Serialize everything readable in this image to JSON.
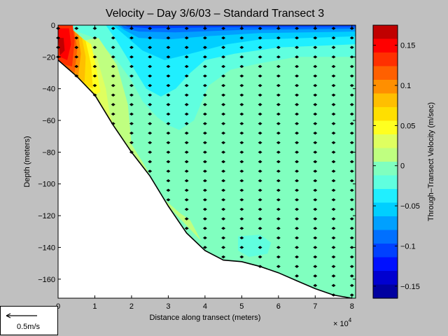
{
  "chart_data": {
    "type": "contour",
    "title": "Velocity – Day 3/6/03 – Standard Transect 3",
    "xlabel": "Distance along transect (meters)",
    "x_multiplier": "× 10",
    "x_multiplier_exp": "4",
    "ylabel": "Depth (meters)",
    "colorbar_label": "Through–Transect Velocity (m/sec)",
    "xlim": [
      0,
      8.1
    ],
    "ylim": [
      -172,
      0
    ],
    "x_ticks": [
      0,
      1,
      2,
      3,
      4,
      5,
      6,
      7,
      8
    ],
    "y_ticks": [
      0,
      -20,
      -40,
      -60,
      -80,
      -100,
      -120,
      -140,
      -160
    ],
    "y_tick_labels": [
      "0",
      "−20",
      "−40",
      "−60",
      "−80",
      "−100",
      "−120",
      "−140",
      "−160"
    ],
    "colorbar_range": [
      -0.165,
      0.175
    ],
    "colorbar_ticks": [
      0.15,
      0.1,
      0.05,
      0,
      -0.05,
      -0.1,
      -0.15
    ],
    "colorbar_tick_labels": [
      "0.15",
      "0.1",
      "0.05",
      "0",
      "−0.05",
      "−0.1",
      "−0.15"
    ],
    "colorbar_levels": [
      {
        "v": 0.17,
        "c": "#c00000"
      },
      {
        "v": 0.155,
        "c": "#ff0000"
      },
      {
        "v": 0.14,
        "c": "#ff3000"
      },
      {
        "v": 0.125,
        "c": "#ff6000"
      },
      {
        "v": 0.11,
        "c": "#ff8f00"
      },
      {
        "v": 0.095,
        "c": "#ffbf00"
      },
      {
        "v": 0.075,
        "c": "#ffdf00"
      },
      {
        "v": 0.06,
        "c": "#ffff20"
      },
      {
        "v": 0.035,
        "c": "#dfff60"
      },
      {
        "v": 0.02,
        "c": "#bfff80"
      },
      {
        "v": 0.005,
        "c": "#80ffbf"
      },
      {
        "v": -0.015,
        "c": "#60ffdf"
      },
      {
        "v": -0.035,
        "c": "#20efff"
      },
      {
        "v": -0.055,
        "c": "#00cfff"
      },
      {
        "v": -0.075,
        "c": "#00a0ff"
      },
      {
        "v": -0.09,
        "c": "#0070ff"
      },
      {
        "v": -0.11,
        "c": "#0040ff"
      },
      {
        "v": -0.13,
        "c": "#0010ff"
      },
      {
        "v": -0.145,
        "c": "#0000d0"
      },
      {
        "v": -0.16,
        "c": "#0000a0"
      }
    ],
    "bottom_profile": [
      [
        0,
        -22
      ],
      [
        0.5,
        -32
      ],
      [
        1.0,
        -44
      ],
      [
        1.5,
        -63
      ],
      [
        2.0,
        -80
      ],
      [
        2.5,
        -95
      ],
      [
        3.0,
        -114
      ],
      [
        3.5,
        -131
      ],
      [
        4.0,
        -142
      ],
      [
        4.5,
        -148
      ],
      [
        5.0,
        -149
      ],
      [
        5.5,
        -152
      ],
      [
        6.0,
        -156
      ],
      [
        6.5,
        -161
      ],
      [
        7.0,
        -166
      ],
      [
        7.5,
        -170
      ],
      [
        8.0,
        -172
      ]
    ],
    "regions": [
      {
        "c": "#60ffdf",
        "pts": [
          [
            0,
            0
          ],
          [
            8.1,
            0
          ],
          [
            8.1,
            -20
          ],
          [
            6.5,
            -20
          ],
          [
            5.5,
            -24
          ],
          [
            4.7,
            -28
          ],
          [
            4.1,
            -38
          ],
          [
            3.7,
            -60
          ],
          [
            3.3,
            -66
          ],
          [
            3.0,
            -63
          ],
          [
            2.7,
            -58
          ],
          [
            2.3,
            -48
          ],
          [
            2.0,
            -35
          ],
          [
            1.6,
            -22
          ],
          [
            1.0,
            -8
          ]
        ]
      },
      {
        "c": "#20efff",
        "pts": [
          [
            1.3,
            0
          ],
          [
            8.1,
            0
          ],
          [
            8.1,
            -12
          ],
          [
            6.0,
            -14
          ],
          [
            4.8,
            -18
          ],
          [
            4.0,
            -22
          ],
          [
            3.6,
            -30
          ],
          [
            3.2,
            -40
          ],
          [
            2.8,
            -45
          ],
          [
            2.4,
            -40
          ],
          [
            2.0,
            -25
          ],
          [
            1.6,
            -10
          ]
        ]
      },
      {
        "c": "#00cfff",
        "pts": [
          [
            1.5,
            0
          ],
          [
            8.1,
            0
          ],
          [
            8.1,
            -7
          ],
          [
            5.5,
            -9
          ],
          [
            4.6,
            -12
          ],
          [
            3.6,
            -18
          ],
          [
            2.9,
            -22
          ],
          [
            2.3,
            -16
          ],
          [
            1.8,
            -6
          ]
        ]
      },
      {
        "c": "#00a0ff",
        "pts": [
          [
            1.6,
            0
          ],
          [
            8.1,
            0
          ],
          [
            8.1,
            -4
          ],
          [
            5.5,
            -5
          ],
          [
            4.0,
            -7
          ],
          [
            3.0,
            -9
          ],
          [
            2.2,
            -8
          ],
          [
            1.8,
            -3
          ]
        ]
      },
      {
        "c": "#0070ff",
        "pts": [
          [
            1.7,
            0
          ],
          [
            8.1,
            0
          ],
          [
            8.1,
            -2.2
          ],
          [
            5.0,
            -3
          ],
          [
            3.2,
            -4.5
          ],
          [
            2.2,
            -4
          ],
          [
            1.8,
            -2
          ]
        ]
      },
      {
        "c": "#0040ff",
        "pts": [
          [
            1.8,
            0
          ],
          [
            8.1,
            0
          ],
          [
            8.1,
            -1
          ],
          [
            4.5,
            -1.3
          ],
          [
            2.5,
            -2
          ],
          [
            1.9,
            -1
          ]
        ]
      },
      {
        "c": "#60ffdf",
        "pts": [
          [
            4.9,
            -133
          ],
          [
            5.5,
            -132
          ],
          [
            5.8,
            -137
          ],
          [
            5.7,
            -144
          ],
          [
            5.2,
            -146
          ],
          [
            4.9,
            -142
          ]
        ]
      },
      {
        "c": "#bfff80",
        "pts": [
          [
            0.6,
            -10
          ],
          [
            1.1,
            -8
          ],
          [
            1.6,
            -25
          ],
          [
            1.9,
            -50
          ],
          [
            2.0,
            -75
          ],
          [
            2.4,
            -90
          ],
          [
            2.6,
            -100
          ],
          [
            2.7,
            -106
          ],
          [
            3.3,
            -118
          ],
          [
            3.6,
            -123
          ],
          [
            3.9,
            -136
          ],
          [
            3.0,
            -114
          ],
          [
            2.5,
            -95
          ],
          [
            2.0,
            -80
          ],
          [
            1.5,
            -63
          ],
          [
            1.0,
            -44
          ]
        ]
      },
      {
        "c": "#dfff60",
        "pts": [
          [
            0.6,
            -10
          ],
          [
            1.05,
            -20
          ],
          [
            1.3,
            -40
          ],
          [
            1.4,
            -55
          ],
          [
            1.5,
            -63
          ],
          [
            1.0,
            -44
          ],
          [
            0.5,
            -32
          ]
        ]
      },
      {
        "c": "#ffff20",
        "pts": [
          [
            0.5,
            -6
          ],
          [
            0.9,
            -12
          ],
          [
            1.05,
            -28
          ],
          [
            1.15,
            -42
          ],
          [
            1.0,
            -44
          ],
          [
            0.5,
            -32
          ]
        ]
      },
      {
        "c": "#ffdf00",
        "pts": [
          [
            0.45,
            -4
          ],
          [
            0.75,
            -10
          ],
          [
            0.9,
            -25
          ],
          [
            0.95,
            -40
          ],
          [
            0.7,
            -37
          ],
          [
            0.5,
            -32
          ]
        ]
      },
      {
        "c": "#ffbf00",
        "pts": [
          [
            0.35,
            -2
          ],
          [
            0.65,
            -8
          ],
          [
            0.75,
            -20
          ],
          [
            0.72,
            -36
          ],
          [
            0.5,
            -32
          ],
          [
            0.3,
            -28
          ]
        ]
      },
      {
        "c": "#ff8f00",
        "pts": [
          [
            0.25,
            -1
          ],
          [
            0.55,
            -6
          ],
          [
            0.62,
            -18
          ],
          [
            0.55,
            -32
          ],
          [
            0.3,
            -28
          ],
          [
            0.1,
            -24
          ]
        ]
      },
      {
        "c": "#ff6000",
        "pts": [
          [
            0.15,
            0
          ],
          [
            0.45,
            -4
          ],
          [
            0.52,
            -15
          ],
          [
            0.45,
            -30
          ],
          [
            0.2,
            -26
          ],
          [
            0,
            -22
          ]
        ]
      },
      {
        "c": "#ff3000",
        "pts": [
          [
            0,
            0
          ],
          [
            0.4,
            0
          ],
          [
            0.45,
            -10
          ],
          [
            0.38,
            -26
          ],
          [
            0.2,
            -25
          ],
          [
            0,
            -22
          ]
        ]
      },
      {
        "c": "#ff0000",
        "pts": [
          [
            0,
            -2
          ],
          [
            0.3,
            -2
          ],
          [
            0.35,
            -12
          ],
          [
            0.25,
            -22
          ],
          [
            0.05,
            -20
          ]
        ]
      },
      {
        "c": "#c00000",
        "pts": [
          [
            0,
            -8
          ],
          [
            0.15,
            -8
          ],
          [
            0.18,
            -16
          ],
          [
            0.05,
            -19
          ]
        ]
      }
    ],
    "vector_columns": [
      0,
      0.5,
      1.0,
      1.5,
      2.0,
      2.5,
      3.0,
      3.5,
      4.0,
      4.5,
      5.0,
      5.5,
      6.0,
      6.5,
      7.0,
      7.5,
      8.0
    ],
    "vector_depth_step": 6,
    "scale_arrow_label": "0.5m/s"
  }
}
